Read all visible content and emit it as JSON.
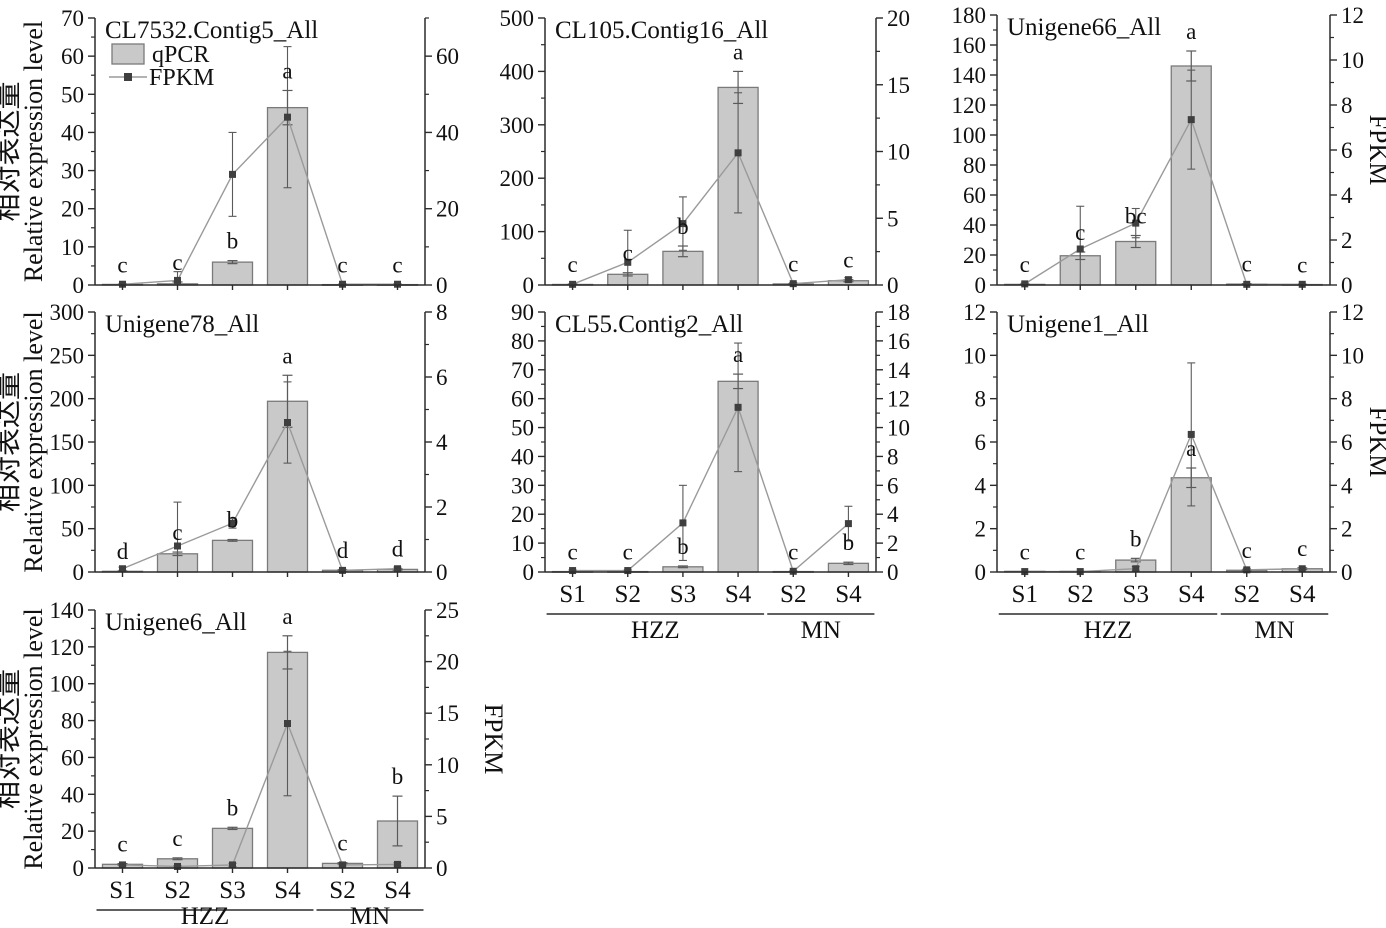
{
  "figure": {
    "background": "#ffffff",
    "left_axis_title_cn": "相对表达量",
    "left_axis_title_en": "Relative expression level",
    "right_axis_title": "FPKM",
    "legend": {
      "bar_label": "qPCR",
      "line_label": "FPKM"
    },
    "x_tick_labels": [
      "S1",
      "S2",
      "S3",
      "S4",
      "S2",
      "S4"
    ],
    "x_group_labels": [
      "HZZ",
      "MN"
    ],
    "colors": {
      "bar_fill": "#c9c9c9",
      "bar_stroke": "#7a7a7a",
      "line": "#9a9a9a",
      "marker": "#3f3f3f",
      "error": "#5a5a5a",
      "axis": "#2b2b2b",
      "text": "#111111"
    }
  },
  "chart_data": [
    {
      "type": "bar+line",
      "title": "CL7532.Contig5_All",
      "categories": [
        "S1",
        "S2",
        "S3",
        "S4",
        "S2",
        "S4"
      ],
      "groups": [
        {
          "label": "HZZ",
          "span": [
            0,
            3
          ]
        },
        {
          "label": "MN",
          "span": [
            4,
            5
          ]
        }
      ],
      "left_axis": {
        "min": 0,
        "max": 70,
        "step": 10,
        "label": "相对表达量 Relative expression level"
      },
      "right_axis": {
        "min": 0,
        "max": 70,
        "step": 20,
        "label": "FPKM"
      },
      "bars": {
        "name": "qPCR",
        "values": [
          0.15,
          0.3,
          6,
          46.5,
          0.1,
          0.1
        ],
        "errors": [
          0,
          0.5,
          0.4,
          4.5,
          0,
          0
        ]
      },
      "line": {
        "name": "FPKM",
        "values": [
          0.2,
          1.2,
          29,
          44,
          0.2,
          0.2
        ],
        "errors": [
          0.2,
          2.3,
          11,
          18.5,
          0.15,
          0.15
        ]
      },
      "letters": [
        "c",
        "c",
        "b",
        "a",
        "c",
        "c"
      ],
      "show": {
        "legend": true,
        "x_labels": false,
        "left_title": true,
        "right_title": false
      }
    },
    {
      "type": "bar+line",
      "title": "CL105.Contig16_All",
      "categories": [
        "S1",
        "S2",
        "S3",
        "S4",
        "S2",
        "S4"
      ],
      "groups": [
        {
          "label": "HZZ",
          "span": [
            0,
            3
          ]
        },
        {
          "label": "MN",
          "span": [
            4,
            5
          ]
        }
      ],
      "left_axis": {
        "min": 0,
        "max": 500,
        "step": 100,
        "label": ""
      },
      "right_axis": {
        "min": 0,
        "max": 20,
        "step": 5,
        "label": ""
      },
      "bars": {
        "name": "qPCR",
        "values": [
          1,
          20,
          63,
          370,
          2,
          8
        ],
        "errors": [
          0.5,
          3,
          10,
          30,
          0.5,
          2
        ]
      },
      "line": {
        "name": "FPKM",
        "values": [
          0.05,
          1.7,
          4.6,
          9.9,
          0.1,
          0.4
        ],
        "errors": [
          0.05,
          2.4,
          2.0,
          4.5,
          0.08,
          0.15
        ]
      },
      "letters": [
        "c",
        "c",
        "b",
        "a",
        "c",
        "c"
      ],
      "show": {
        "legend": false,
        "x_labels": false,
        "left_title": false,
        "right_title": false
      }
    },
    {
      "type": "bar+line",
      "title": "Unigene66_All",
      "categories": [
        "S1",
        "S2",
        "S3",
        "S4",
        "S2",
        "S4"
      ],
      "groups": [
        {
          "label": "HZZ",
          "span": [
            0,
            3
          ]
        },
        {
          "label": "MN",
          "span": [
            4,
            5
          ]
        }
      ],
      "left_axis": {
        "min": 0,
        "max": 180,
        "step": 20,
        "label": ""
      },
      "right_axis": {
        "min": 0,
        "max": 12,
        "step": 2,
        "label": "FPKM"
      },
      "bars": {
        "name": "qPCR",
        "values": [
          0.4,
          19.5,
          29,
          146,
          0.6,
          0.3
        ],
        "errors": [
          0.2,
          2.5,
          4,
          10,
          0.3,
          0.1
        ]
      },
      "line": {
        "name": "FPKM",
        "values": [
          0.05,
          1.6,
          2.75,
          7.35,
          0.03,
          0.03
        ],
        "errors": [
          0.03,
          1.9,
          0.65,
          2.2,
          0.02,
          0.02
        ]
      },
      "letters": [
        "c",
        "c",
        "bc",
        "a",
        "c",
        "c"
      ],
      "show": {
        "legend": false,
        "x_labels": false,
        "left_title": false,
        "right_title": true
      }
    },
    {
      "type": "bar+line",
      "title": "Unigene78_All",
      "categories": [
        "S1",
        "S2",
        "S3",
        "S4",
        "S2",
        "S4"
      ],
      "groups": [
        {
          "label": "HZZ",
          "span": [
            0,
            3
          ]
        },
        {
          "label": "MN",
          "span": [
            4,
            5
          ]
        }
      ],
      "left_axis": {
        "min": 0,
        "max": 300,
        "step": 50,
        "label": "相对表达量 Relative expression level"
      },
      "right_axis": {
        "min": 0,
        "max": 8,
        "step": 2,
        "label": ""
      },
      "bars": {
        "name": "qPCR",
        "values": [
          0.8,
          21,
          36.5,
          197,
          2,
          3
        ],
        "errors": [
          0.3,
          2,
          1,
          30,
          0.5,
          0.8
        ]
      },
      "line": {
        "name": "FPKM",
        "values": [
          0.1,
          0.8,
          1.5,
          4.6,
          0.05,
          0.1
        ],
        "errors": [
          0.05,
          1.35,
          0.15,
          1.25,
          0.03,
          0.05
        ]
      },
      "letters": [
        "d",
        "c",
        "b",
        "a",
        "d",
        "d"
      ],
      "show": {
        "legend": false,
        "x_labels": false,
        "left_title": true,
        "right_title": false
      }
    },
    {
      "type": "bar+line",
      "title": "CL55.Contig2_All",
      "categories": [
        "S1",
        "S2",
        "S3",
        "S4",
        "S2",
        "S4"
      ],
      "groups": [
        {
          "label": "HZZ",
          "span": [
            0,
            3
          ]
        },
        {
          "label": "MN",
          "span": [
            4,
            5
          ]
        }
      ],
      "left_axis": {
        "min": 0,
        "max": 90,
        "step": 10,
        "label": ""
      },
      "right_axis": {
        "min": 0,
        "max": 18,
        "step": 2,
        "label": ""
      },
      "bars": {
        "name": "qPCR",
        "values": [
          0.15,
          0.15,
          1.8,
          66,
          0.15,
          3
        ],
        "errors": [
          0,
          0,
          0.3,
          2.5,
          0,
          0.4
        ]
      },
      "line": {
        "name": "FPKM",
        "values": [
          0.1,
          0.1,
          3.4,
          11.4,
          0.05,
          3.35
        ],
        "errors": [
          0.05,
          0.05,
          2.6,
          4.45,
          0.03,
          1.2
        ]
      },
      "letters": [
        "c",
        "c",
        "b",
        "a",
        "c",
        "b"
      ],
      "show": {
        "legend": false,
        "x_labels": true,
        "left_title": false,
        "right_title": false
      }
    },
    {
      "type": "bar+line",
      "title": "Unigene1_All",
      "categories": [
        "S1",
        "S2",
        "S3",
        "S4",
        "S2",
        "S4"
      ],
      "groups": [
        {
          "label": "HZZ",
          "span": [
            0,
            3
          ]
        },
        {
          "label": "MN",
          "span": [
            4,
            5
          ]
        }
      ],
      "left_axis": {
        "min": 0,
        "max": 12,
        "step": 2,
        "label": ""
      },
      "right_axis": {
        "min": 0,
        "max": 12,
        "step": 2,
        "label": "FPKM"
      },
      "bars": {
        "name": "qPCR",
        "values": [
          0.03,
          0.03,
          0.55,
          4.35,
          0.08,
          0.15
        ],
        "errors": [
          0,
          0,
          0.08,
          0.45,
          0.02,
          0.04
        ]
      },
      "line": {
        "name": "FPKM",
        "values": [
          0.02,
          0.02,
          0.15,
          6.35,
          0.1,
          0.15
        ],
        "errors": [
          0,
          0,
          0.1,
          3.3,
          0.05,
          0.05
        ]
      },
      "letters": [
        "c",
        "c",
        "b",
        "a",
        "c",
        "c"
      ],
      "show": {
        "legend": false,
        "x_labels": true,
        "left_title": false,
        "right_title": true
      }
    },
    {
      "type": "bar+line",
      "title": "Unigene6_All",
      "categories": [
        "S1",
        "S2",
        "S3",
        "S4",
        "S2",
        "S4"
      ],
      "groups": [
        {
          "label": "HZZ",
          "span": [
            0,
            3
          ]
        },
        {
          "label": "MN",
          "span": [
            4,
            5
          ]
        }
      ],
      "left_axis": {
        "min": 0,
        "max": 140,
        "step": 20,
        "label": "相对表达量 Relative expression level"
      },
      "right_axis": {
        "min": 0,
        "max": 25,
        "step": 5,
        "label": "FPKM"
      },
      "bars": {
        "name": "qPCR",
        "values": [
          2,
          5,
          21.5,
          117,
          2.5,
          25.5
        ],
        "errors": [
          0.4,
          0.5,
          0.6,
          9,
          0.4,
          13.5
        ]
      },
      "line": {
        "name": "FPKM",
        "values": [
          0.3,
          0.15,
          0.3,
          14,
          0.3,
          0.35
        ],
        "errors": [
          0.1,
          0.08,
          0.15,
          7,
          0.1,
          0.15
        ]
      },
      "letters": [
        "c",
        "c",
        "b",
        "a",
        "c",
        "b"
      ],
      "show": {
        "legend": false,
        "x_labels": true,
        "left_title": true,
        "right_title": true
      }
    }
  ]
}
